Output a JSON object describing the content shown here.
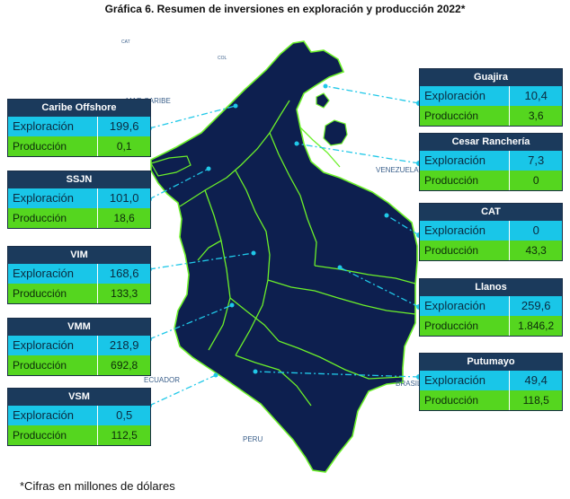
{
  "title": "Gráfica 6. Resumen de inversiones en exploración y producción 2022*",
  "footnote": "*Cifras en millones de dólares",
  "row_labels": {
    "exploracion": "Exploración",
    "produccion": "Producción"
  },
  "map_labels": {
    "cat": "CAT",
    "col": "COL",
    "mar_caribe": "MAR CARIBE",
    "venezuela": "VENEZUELA",
    "ecuador": "ECUADOR",
    "peru": "PERU",
    "brasil": "BRASIL"
  },
  "colors": {
    "land": "#0d1f4f",
    "basin_lines": "#6cf02a",
    "leader_lines": "#20c8e8",
    "header": "#1b3a5c",
    "exploracion_row": "#19c6e8",
    "produccion_row": "#55d61f"
  },
  "basins": [
    {
      "name": "Caribe Offshore",
      "exploracion": "199,6",
      "produccion": "0,1"
    },
    {
      "name": "SSJN",
      "exploracion": "101,0",
      "produccion": "18,6"
    },
    {
      "name": "VIM",
      "exploracion": "168,6",
      "produccion": "133,3"
    },
    {
      "name": "VMM",
      "exploracion": "218,9",
      "produccion": "692,8"
    },
    {
      "name": "VSM",
      "exploracion": "0,5",
      "produccion": "112,5"
    },
    {
      "name": "Guajira",
      "exploracion": "10,4",
      "produccion": "3,6"
    },
    {
      "name": "Cesar Ranchería",
      "exploracion": "7,3",
      "produccion": "0"
    },
    {
      "name": "CAT",
      "exploracion": "0",
      "produccion": "43,3"
    },
    {
      "name": "Llanos",
      "exploracion": "259,6",
      "produccion": "1.846,2"
    },
    {
      "name": "Putumayo",
      "exploracion": "49,4",
      "produccion": "118,5"
    }
  ]
}
